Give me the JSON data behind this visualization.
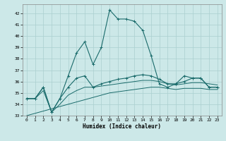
{
  "xlabel": "Humidex (Indice chaleur)",
  "xlim": [
    -0.5,
    23.5
  ],
  "ylim": [
    33,
    42.8
  ],
  "yticks": [
    33,
    34,
    35,
    36,
    37,
    38,
    39,
    40,
    41,
    42
  ],
  "xticks": [
    0,
    1,
    2,
    3,
    4,
    5,
    6,
    7,
    8,
    9,
    10,
    11,
    12,
    13,
    14,
    15,
    16,
    17,
    18,
    19,
    20,
    21,
    22,
    23
  ],
  "background_color": "#cce8e8",
  "grid_color": "#aacfcf",
  "line_color": "#1a6b6b",
  "series1_x": [
    0,
    1,
    2,
    3,
    4,
    5,
    6,
    7,
    8,
    9,
    10,
    11,
    12,
    13,
    14,
    15,
    16,
    17,
    18,
    19,
    20,
    21,
    22,
    23
  ],
  "series1_y": [
    34.5,
    34.5,
    35.5,
    33.3,
    34.5,
    36.5,
    38.5,
    39.5,
    37.5,
    39.0,
    42.3,
    41.5,
    41.5,
    41.3,
    40.5,
    38.3,
    35.8,
    35.5,
    35.8,
    36.5,
    36.3,
    36.3,
    35.5,
    35.5
  ],
  "series2_x": [
    0,
    1,
    2,
    3,
    4,
    5,
    6,
    7,
    8,
    9,
    10,
    11,
    12,
    13,
    14,
    15,
    16,
    17,
    18,
    19,
    20,
    21,
    22,
    23
  ],
  "series2_y": [
    34.5,
    34.5,
    35.5,
    33.3,
    34.5,
    35.5,
    36.3,
    36.5,
    35.5,
    35.8,
    36.0,
    36.2,
    36.3,
    36.5,
    36.6,
    36.5,
    36.2,
    35.8,
    35.8,
    36.0,
    36.3,
    36.3,
    35.5,
    35.5
  ],
  "series3_x": [
    0,
    1,
    2,
    3,
    4,
    5,
    6,
    7,
    8,
    9,
    10,
    11,
    12,
    13,
    14,
    15,
    16,
    17,
    18,
    19,
    20,
    21,
    22,
    23
  ],
  "series3_y": [
    34.5,
    34.5,
    35.2,
    33.3,
    34.0,
    34.8,
    35.2,
    35.5,
    35.5,
    35.6,
    35.7,
    35.8,
    35.9,
    36.0,
    36.1,
    36.1,
    36.0,
    35.8,
    35.7,
    35.8,
    35.9,
    35.9,
    35.8,
    35.7
  ],
  "series4_x": [
    0,
    1,
    2,
    3,
    4,
    5,
    6,
    7,
    8,
    9,
    10,
    11,
    12,
    13,
    14,
    15,
    16,
    17,
    18,
    19,
    20,
    21,
    22,
    23
  ],
  "series4_y": [
    33.0,
    33.2,
    33.4,
    33.6,
    33.8,
    34.0,
    34.2,
    34.4,
    34.6,
    34.8,
    35.0,
    35.1,
    35.2,
    35.3,
    35.4,
    35.5,
    35.5,
    35.4,
    35.3,
    35.4,
    35.4,
    35.4,
    35.3,
    35.3
  ]
}
